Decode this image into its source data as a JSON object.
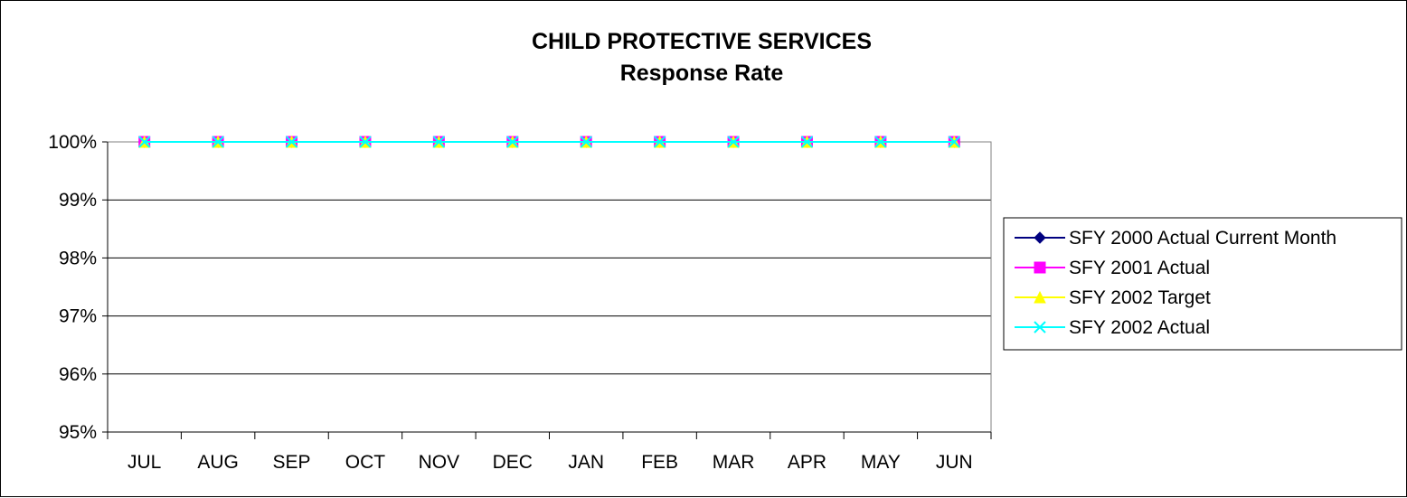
{
  "chart_data": {
    "type": "line",
    "title": "CHILD PROTECTIVE SERVICES",
    "subtitle": "Response Rate",
    "xlabel": "",
    "ylabel": "",
    "categories": [
      "JUL",
      "AUG",
      "SEP",
      "OCT",
      "NOV",
      "DEC",
      "JAN",
      "FEB",
      "MAR",
      "APR",
      "MAY",
      "JUN"
    ],
    "y_ticks": [
      "100%",
      "99%",
      "98%",
      "97%",
      "96%",
      "95%"
    ],
    "ylim": [
      0.95,
      1.0
    ],
    "grid": true,
    "legend_position": "right",
    "series": [
      {
        "name": "SFY 2000 Actual Current Month",
        "color": "#000080",
        "marker": "diamond",
        "values": [
          1,
          1,
          1,
          1,
          1,
          1,
          1,
          1,
          1,
          1,
          1,
          1
        ]
      },
      {
        "name": "SFY 2001 Actual",
        "color": "#FF00FF",
        "marker": "square",
        "values": [
          1,
          1,
          1,
          1,
          1,
          1,
          1,
          1,
          1,
          1,
          1,
          1
        ]
      },
      {
        "name": "SFY 2002 Target",
        "color": "#FFFF00",
        "marker": "triangle",
        "values": [
          1,
          1,
          1,
          1,
          1,
          1,
          1,
          1,
          1,
          1,
          1,
          1
        ]
      },
      {
        "name": "SFY 2002 Actual",
        "color": "#00FFFF",
        "marker": "x",
        "values": [
          1,
          1,
          1,
          1,
          1,
          1,
          1,
          1,
          1,
          1,
          1,
          1
        ]
      }
    ]
  }
}
